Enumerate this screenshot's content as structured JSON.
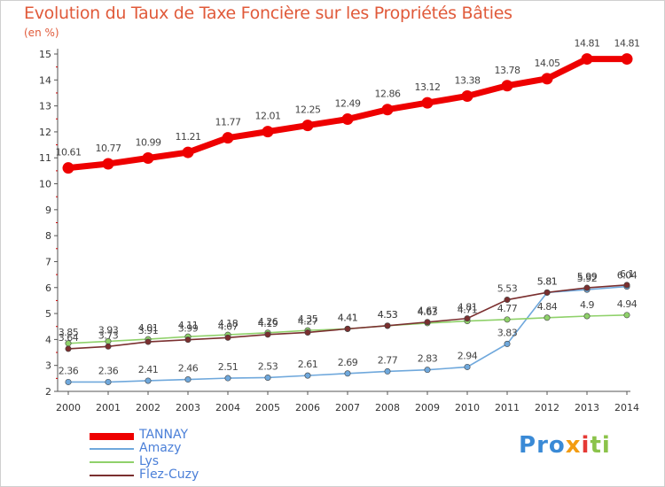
{
  "title": "Evolution du Taux de Taxe Foncière sur les Propriétés Bâties",
  "unit_label": "(en %)",
  "brand": {
    "text": "Proxiti",
    "color_pattern": [
      "#3a8ad6",
      "#f39c12",
      "#8bc34a",
      "#e53935"
    ]
  },
  "chart_data": {
    "type": "line",
    "title": "Evolution du Taux de Taxe Foncière sur les Propriétés Bâties",
    "ylabel": "(en %)",
    "xlabel": "",
    "x": [
      "2000",
      "2001",
      "2002",
      "2003",
      "2004",
      "2005",
      "2006",
      "2007",
      "2008",
      "2009",
      "2010",
      "2011",
      "2012",
      "2013",
      "2014"
    ],
    "ylim": [
      2,
      15
    ],
    "yticks": [
      2,
      3,
      4,
      5,
      6,
      7,
      8,
      9,
      10,
      11,
      12,
      13,
      14,
      15
    ],
    "grid": false,
    "legend_position": "bottom-left",
    "series": [
      {
        "name": "TANNAY",
        "color": "#ee0000",
        "emphasis": true,
        "values": [
          10.61,
          10.77,
          10.99,
          11.21,
          11.77,
          12.01,
          12.25,
          12.49,
          12.86,
          13.12,
          13.38,
          13.78,
          14.05,
          14.81,
          14.81
        ],
        "labels": [
          "10.61",
          "10.77",
          "10.99",
          "11.21",
          "11.77",
          "12.01",
          "12.25",
          "12.49",
          "12.86",
          "13.12",
          "13.38",
          "13.78",
          "14.05",
          "14.81",
          "14.81"
        ]
      },
      {
        "name": "Amazy",
        "color": "#6fa8dc",
        "values": [
          2.36,
          2.36,
          2.41,
          2.46,
          2.51,
          2.53,
          2.61,
          2.69,
          2.77,
          2.83,
          2.94,
          3.83,
          5.81,
          5.92,
          6.04
        ],
        "labels": [
          "2.36",
          "2.36",
          "2.41",
          "2.46",
          "2.51",
          "2.53",
          "2.61",
          "2.69",
          "2.77",
          "2.83",
          "2.94",
          "3.83",
          "5.81",
          "5.92",
          "6.04"
        ]
      },
      {
        "name": "Lys",
        "color": "#8fd16a",
        "values": [
          3.85,
          3.93,
          4.01,
          4.11,
          4.18,
          4.26,
          4.35,
          4.41,
          4.53,
          4.63,
          4.71,
          4.77,
          4.84,
          4.9,
          4.94
        ],
        "labels": [
          "3.85",
          "3.93",
          "4.01",
          "4.11",
          "4.18",
          "4.26",
          "4.35",
          "4.41",
          "4.53",
          "4.63",
          "4.71",
          "4.77",
          "4.84",
          "4.9",
          "4.94"
        ]
      },
      {
        "name": "Flez-Cuzy",
        "color": "#7a2f2f",
        "values": [
          3.64,
          3.73,
          3.91,
          3.99,
          4.07,
          4.19,
          4.27,
          4.41,
          4.53,
          4.67,
          4.81,
          5.53,
          5.81,
          5.99,
          6.1
        ],
        "labels": [
          "3.64",
          "3.73",
          "3.91",
          "3.99",
          "4.07",
          "4.19",
          "4.27",
          "4.41",
          "4.53",
          "4.67",
          "4.81",
          "5.53",
          "5.81",
          "5.99",
          "6.1"
        ]
      }
    ]
  }
}
